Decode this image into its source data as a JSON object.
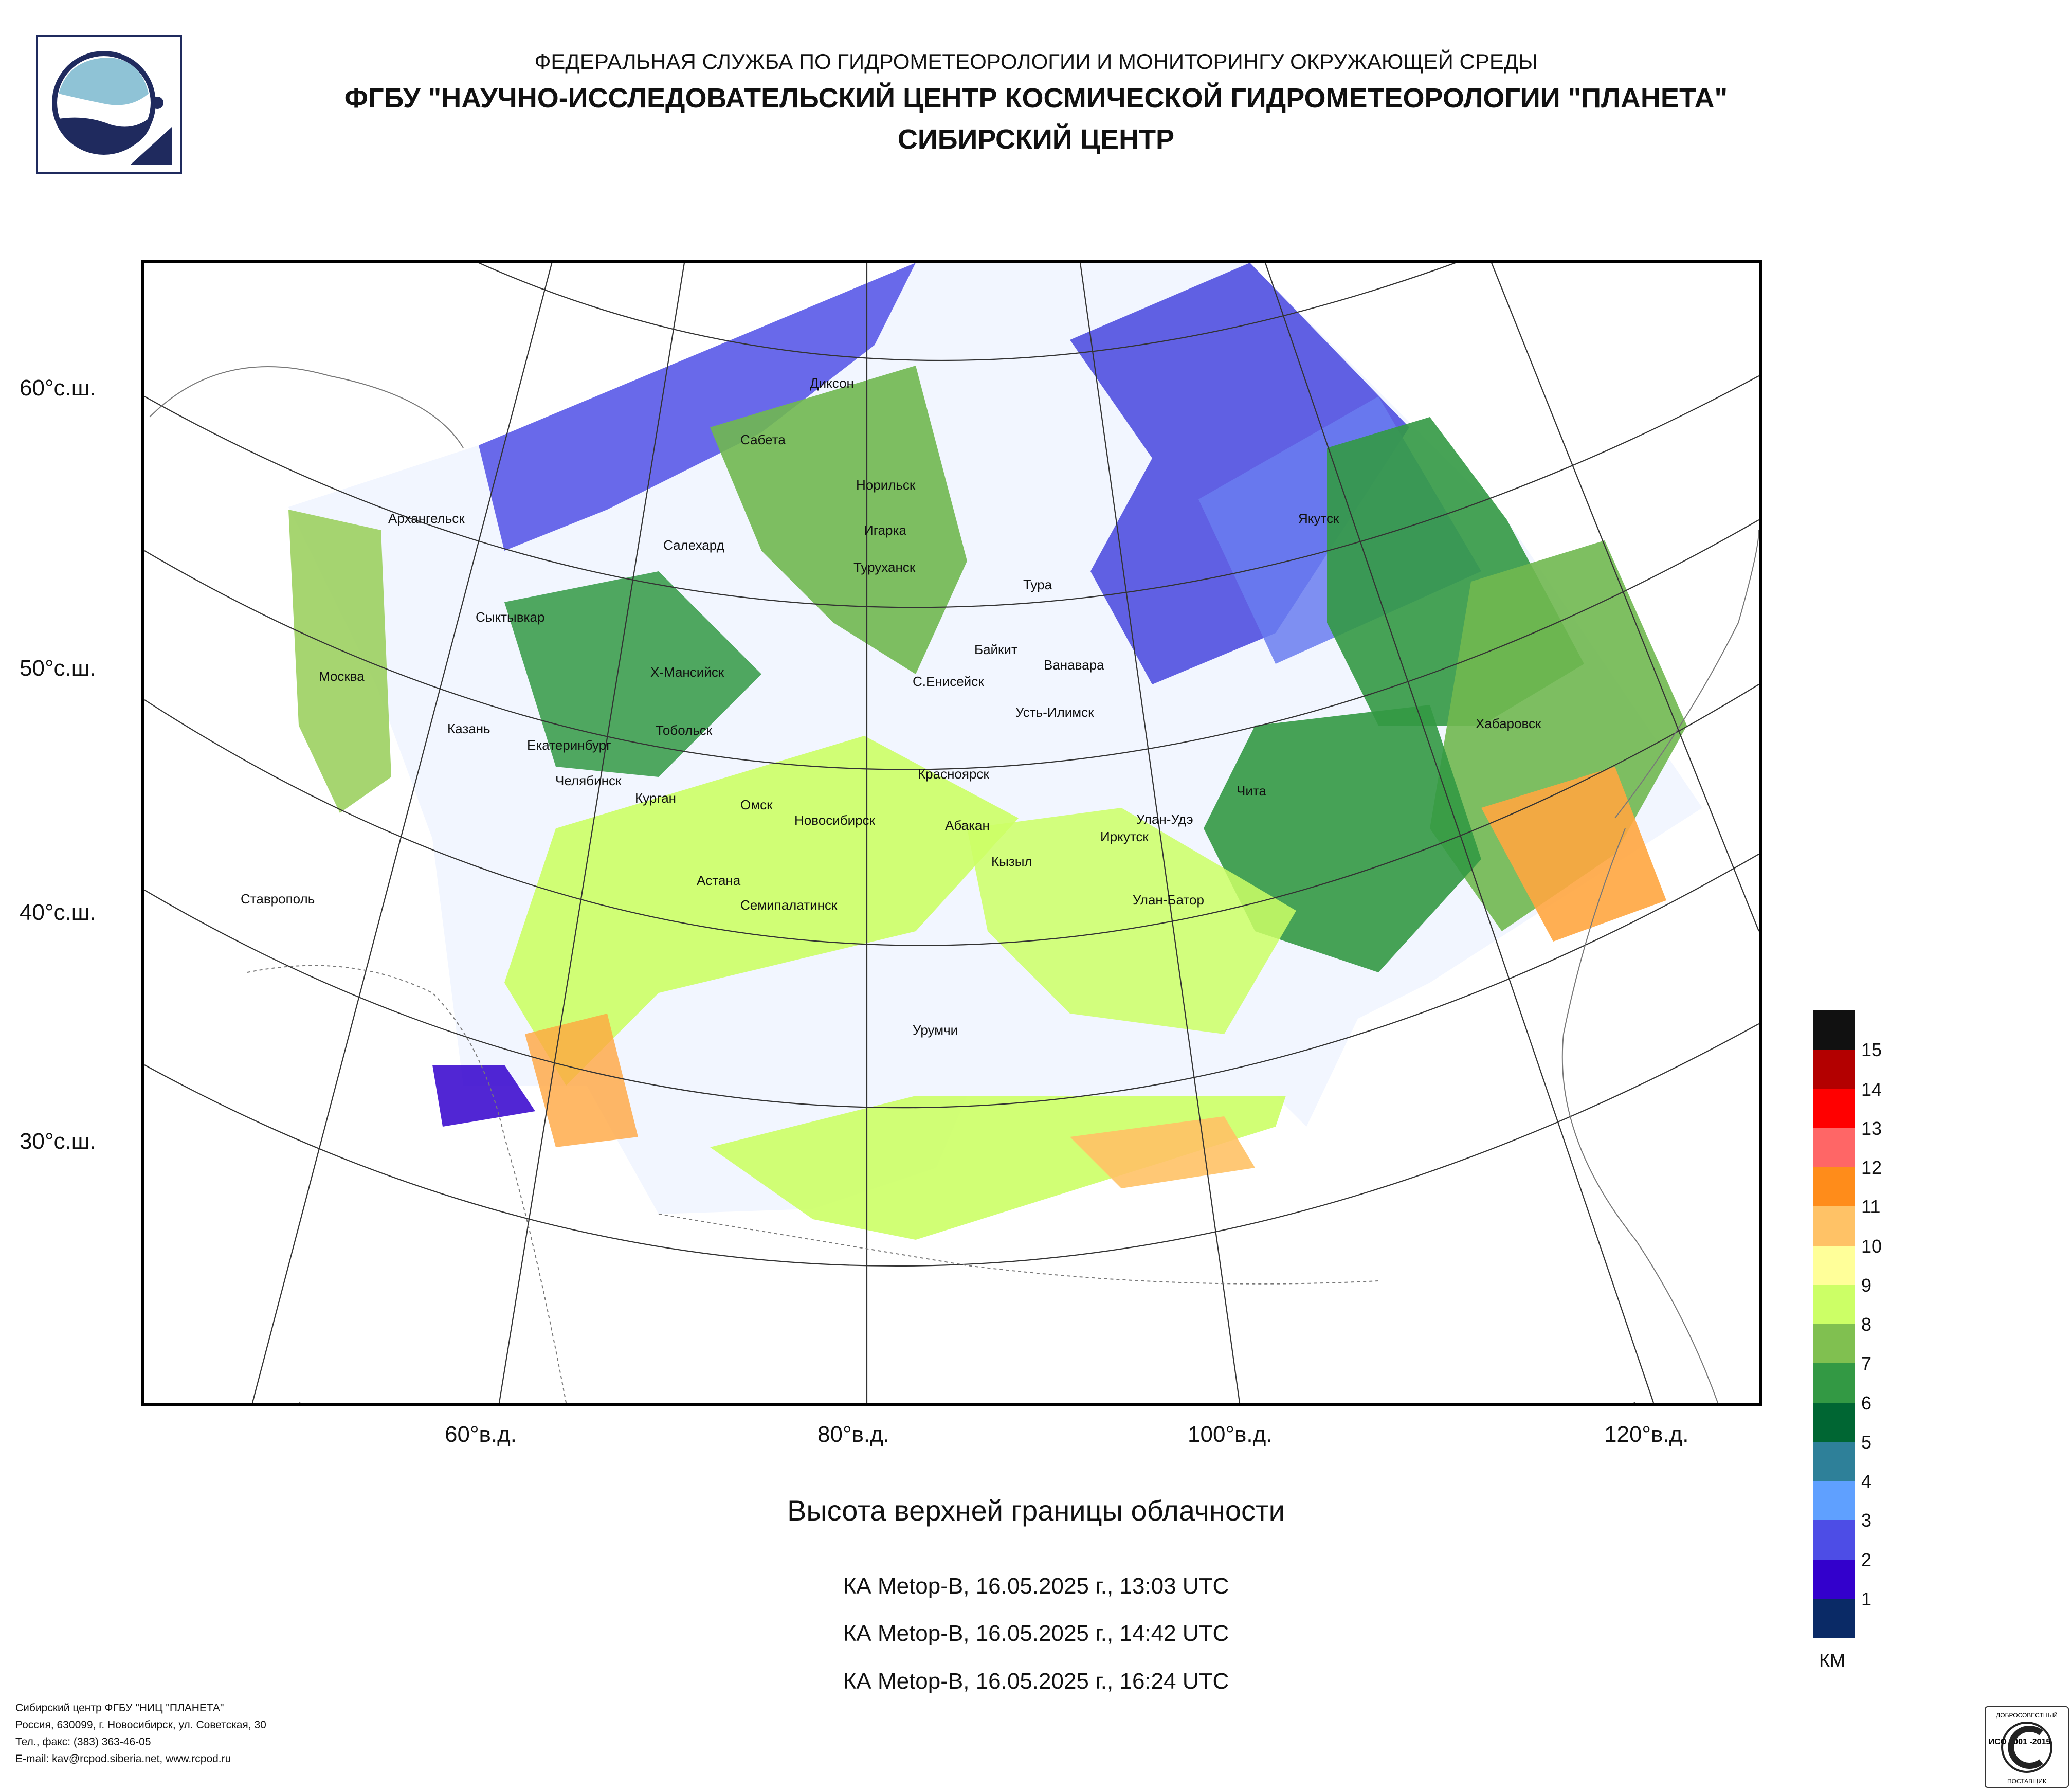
{
  "header": {
    "line1": "ФЕДЕРАЛЬНАЯ СЛУЖБА ПО ГИДРОМЕТЕОРОЛОГИИ И МОНИТОРИНГУ ОКРУЖАЮЩЕЙ СРЕДЫ",
    "line2": "ФГБУ \"НАУЧНО-ИССЛЕДОВАТЕЛЬСКИЙ ЦЕНТР КОСМИЧЕСКОЙ ГИДРОМЕТЕОРОЛОГИИ \"ПЛАНЕТА\"",
    "line3": "СИБИРСКИЙ ЦЕНТР"
  },
  "map": {
    "lat_labels": [
      "60°с.ш.",
      "50°с.ш.",
      "40°с.ш.",
      "30°с.ш."
    ],
    "lon_labels": [
      "60°в.д.",
      "80°в.д.",
      "100°в.д.",
      "120°в.д."
    ],
    "cities": [
      "Диксон",
      "Сабета",
      "Норильск",
      "Архангельск",
      "Салехард",
      "Игарка",
      "Туруханск",
      "Якутск",
      "Тура",
      "Сыктывкар",
      "Байкит",
      "Ванавара",
      "Москва",
      "Х-Мансийск",
      "С.Енисейск",
      "Усть-Илимск",
      "Хабаровск",
      "Казань",
      "Тобольск",
      "Екатеринбург",
      "Красноярск",
      "Челябинск",
      "Курган",
      "Чита",
      "Омск",
      "Новосибирск",
      "Улан-Удэ",
      "Абакан",
      "Иркутск",
      "Кызыл",
      "Астана",
      "Ставрополь",
      "Семипалатинск",
      "Улан-Батор",
      "Урумчи"
    ]
  },
  "title": "Высота верхней границы облачности",
  "passes": [
    "КА Metop-B, 16.05.2025 г., 13:03 UTC",
    "КА Metop-B, 16.05.2025 г., 14:42 UTC",
    "КА Metop-B, 16.05.2025 г., 16:24 UTC"
  ],
  "legend": {
    "unit": "КМ",
    "labels": [
      "15",
      "14",
      "13",
      "12",
      "11",
      "10",
      "9",
      "8",
      "7",
      "6",
      "5",
      "4",
      "3",
      "2",
      "1"
    ],
    "colors": [
      "#111111",
      "#b30000",
      "#ff0000",
      "#ff6666",
      "#ff8c1a",
      "#ffc266",
      "#ffff99",
      "#ccff66",
      "#80c050",
      "#339944",
      "#006633",
      "#2e8099",
      "#5fa0ff",
      "#4d4de6",
      "#3300cc",
      "#0a2a66"
    ]
  },
  "footer": {
    "line1": "Сибирский центр ФГБУ \"НИЦ \"ПЛАНЕТА\"",
    "line2": "Россия, 630099, г. Новосибирск, ул. Советская, 30",
    "line3": "Тел., факс: (383) 363-46-05",
    "line4": "E-mail: kav@rcpod.siberia.net, www.rcpod.ru"
  },
  "iso": {
    "top": "ДОБРОСОВЕСТНЫЙ",
    "mark": "ИСО 9001 -2015",
    "bottom": "ПОСТАВЩИК"
  }
}
